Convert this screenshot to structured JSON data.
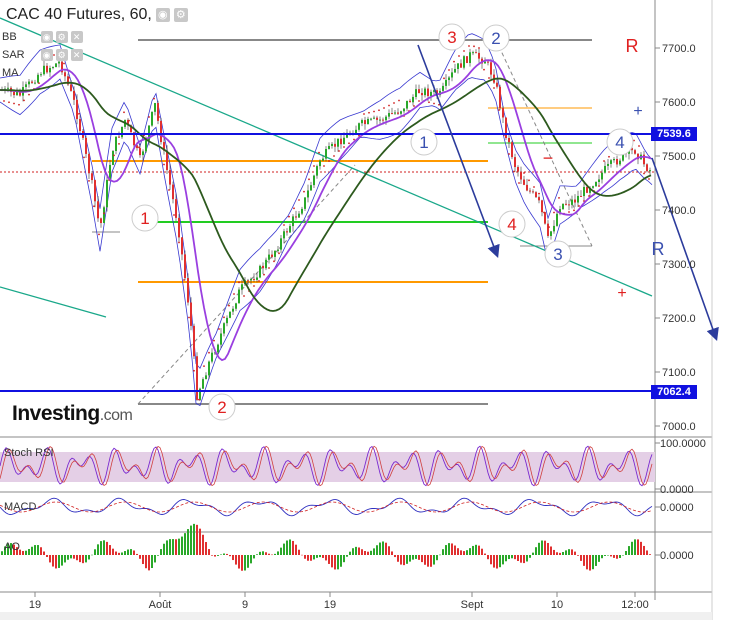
{
  "header": {
    "symbol": "CAC 40 Futures",
    "interval": "60",
    "settings_icon": "eye-icon",
    "gear_icon": "gear-icon"
  },
  "indicators": [
    {
      "label": "BB"
    },
    {
      "label": "SAR"
    },
    {
      "label": "MA"
    }
  ],
  "logo": {
    "brand": "Investing",
    "suffix": ".com"
  },
  "price_axis": {
    "ticks": [
      "7700.0",
      "7600.0",
      "7500.0",
      "7400.0",
      "7300.0",
      "7200.0",
      "7100.0",
      "7000.0"
    ],
    "tags": [
      {
        "label": "7539.6",
        "color": "#1010e0"
      },
      {
        "label": "7062.4",
        "color": "#1010e0"
      }
    ]
  },
  "time_axis": {
    "labels": [
      "19",
      "Août",
      "9",
      "19",
      "Sept",
      "10",
      "12:00"
    ]
  },
  "stoch_pane": {
    "label": "Stoch RSI",
    "ticks": [
      "100.0000",
      "0.0000"
    ]
  },
  "macd_pane": {
    "label": "MACD",
    "ticks": [
      "0.0000"
    ]
  },
  "ao_pane": {
    "label": "AO",
    "ticks": [
      "0.0000"
    ]
  },
  "annotations": {
    "wave_labels": [
      {
        "text": "1",
        "color": "#e02020"
      },
      {
        "text": "2",
        "color": "#e02020"
      },
      {
        "text": "3",
        "color": "#e02020"
      },
      {
        "text": "4",
        "color": "#e02020"
      },
      {
        "text": "1",
        "color": "#3a50b0"
      },
      {
        "text": "2",
        "color": "#3a50b0"
      },
      {
        "text": "3",
        "color": "#3a50b0"
      },
      {
        "text": "4",
        "color": "#3a50b0"
      }
    ],
    "r_top": "R",
    "r_right": "R",
    "plus_top": "+",
    "plus_bottom": "+",
    "minus": "−"
  },
  "colors": {
    "support_resistance": "#1010e0",
    "fib_orange": "#ff9900",
    "fib_green": "#22cc22",
    "ma_dark": "#2d5a1e",
    "ma_purple": "#9a3fe0",
    "trend_teal": "#1aa88a",
    "arrow": "#2c3c9c"
  }
}
